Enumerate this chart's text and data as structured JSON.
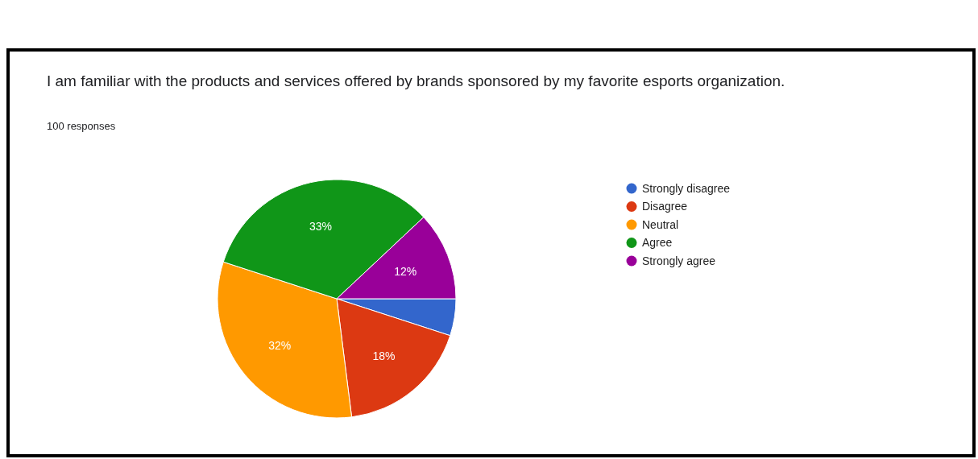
{
  "chart_data": {
    "type": "pie",
    "title": "I am familiar with the products and services offered by brands sponsored by my favorite esports organization.",
    "subtitle": "100 responses",
    "categories": [
      "Strongly disagree",
      "Disagree",
      "Neutral",
      "Agree",
      "Strongly agree"
    ],
    "values": [
      5,
      18,
      32,
      33,
      12
    ],
    "colors": [
      "#3366cc",
      "#dc3912",
      "#ff9900",
      "#109618",
      "#990099"
    ],
    "value_labels": [
      null,
      "18%",
      "32%",
      "33%",
      "12%"
    ],
    "legend": "right"
  }
}
